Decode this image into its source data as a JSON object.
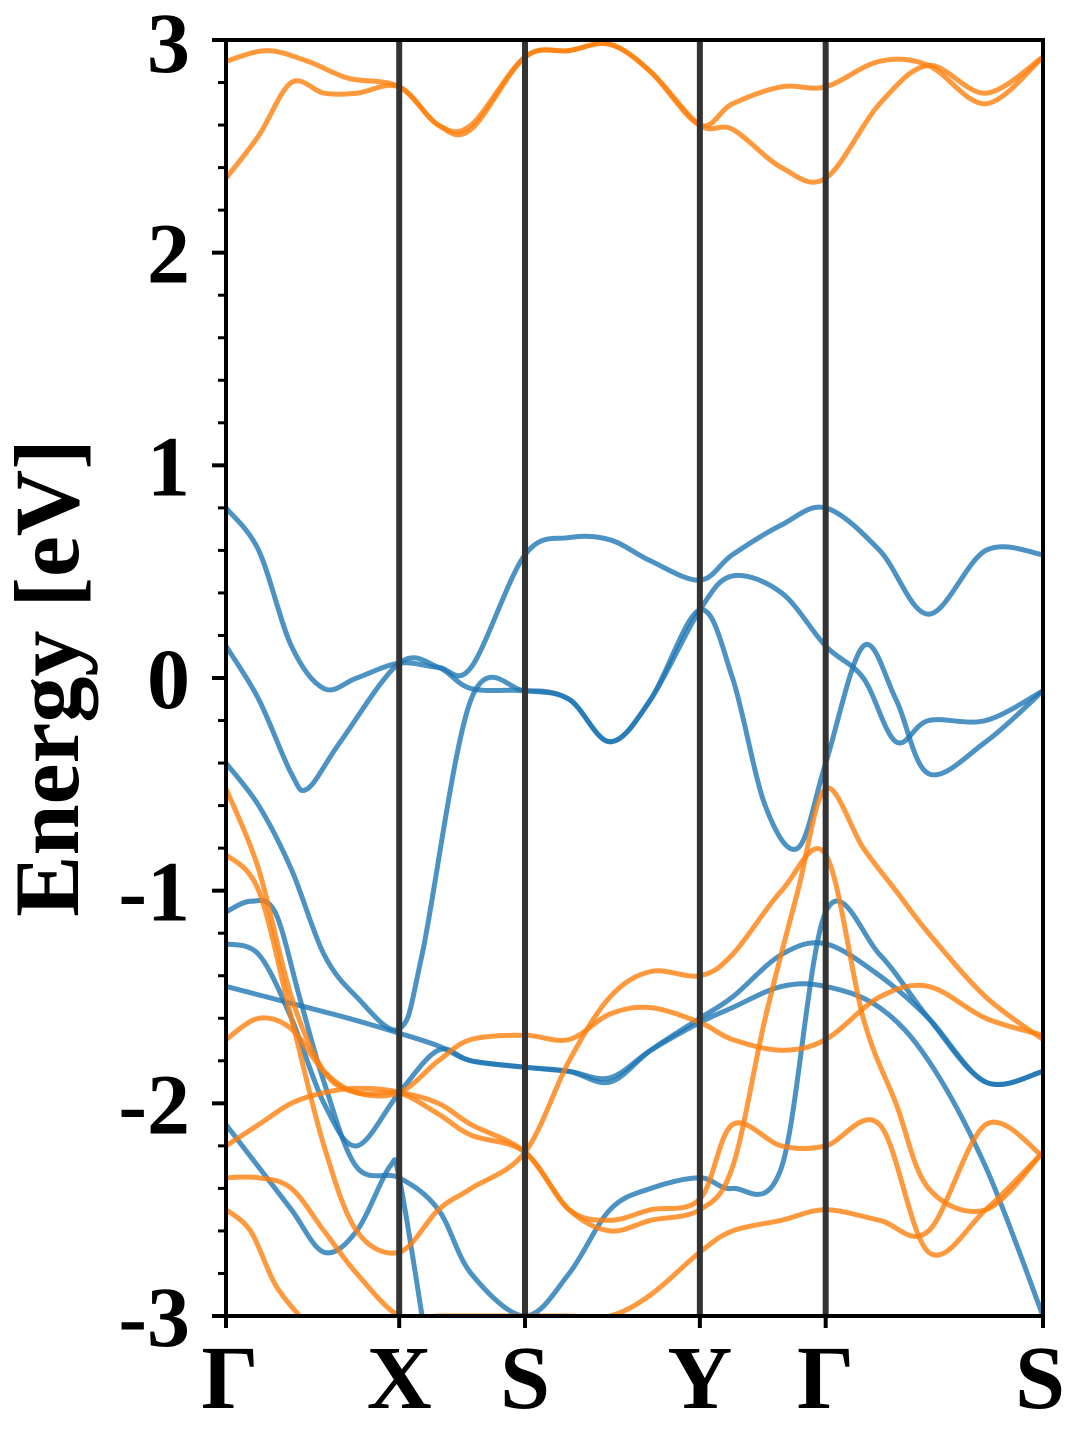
{
  "chart_data": {
    "type": "line",
    "title": "",
    "xlabel": "",
    "ylabel": "Energy [eV]",
    "ylim": [
      -3,
      3
    ],
    "yticks": [
      "3",
      "2",
      "1",
      "0",
      "-1",
      "-2",
      "-3"
    ],
    "ytick_values": [
      3,
      2,
      1,
      0,
      -1,
      -2,
      -3
    ],
    "kpoints": [
      {
        "label": "Γ",
        "x": 0.0
      },
      {
        "label": "X",
        "x": 0.212
      },
      {
        "label": "S",
        "x": 0.366
      },
      {
        "label": "Y",
        "x": 0.58
      },
      {
        "label": "Γ",
        "x": 0.734
      },
      {
        "label": "S",
        "x": 1.0
      }
    ],
    "legend": "none",
    "grid": false,
    "colors": {
      "blue": "#1f77b4",
      "orange": "#ff7f0e",
      "kline": "#333333"
    },
    "series": [
      {
        "color": "blue",
        "x": [
          0,
          0.04,
          0.08,
          0.12,
          0.16,
          0.212,
          0.26,
          0.3,
          0.366,
          0.42,
          0.47,
          0.52,
          0.58,
          0.62,
          0.68,
          0.734,
          0.8,
          0.86,
          0.93,
          1.0
        ],
        "y": [
          0.8,
          0.6,
          0.15,
          -0.05,
          0.0,
          0.07,
          0.05,
          0.05,
          0.58,
          0.66,
          0.65,
          0.55,
          0.46,
          0.58,
          0.72,
          0.8,
          0.6,
          0.3,
          0.6,
          0.58
        ]
      },
      {
        "color": "blue",
        "x": [
          0,
          0.04,
          0.08,
          0.1,
          0.14,
          0.212,
          0.26,
          0.3,
          0.366,
          0.42,
          0.47,
          0.52,
          0.58,
          0.62,
          0.66,
          0.7,
          0.734,
          0.78,
          0.82,
          0.86,
          0.93,
          1.0
        ],
        "y": [
          0.15,
          -0.1,
          -0.45,
          -0.52,
          -0.3,
          0.07,
          0.05,
          -0.05,
          -0.06,
          -0.1,
          -0.3,
          -0.1,
          0.32,
          0.0,
          -0.6,
          -0.8,
          -0.4,
          0.15,
          -0.1,
          -0.45,
          -0.3,
          -0.06
        ]
      },
      {
        "color": "blue",
        "x": [
          0,
          0.04,
          0.08,
          0.12,
          0.16,
          0.212,
          0.24,
          0.3,
          0.366,
          0.42,
          0.47,
          0.52,
          0.58,
          0.62,
          0.68,
          0.734,
          0.78,
          0.82,
          0.86,
          0.93,
          1.0
        ],
        "y": [
          -0.4,
          -0.6,
          -0.9,
          -1.3,
          -1.5,
          -1.65,
          -1.3,
          -0.1,
          -0.06,
          -0.1,
          -0.3,
          -0.1,
          0.32,
          0.48,
          0.4,
          0.15,
          0.0,
          -0.3,
          -0.2,
          -0.2,
          -0.06
        ]
      },
      {
        "color": "blue",
        "x": [
          0,
          0.03,
          0.06,
          0.09,
          0.12,
          0.16,
          0.212,
          0.26,
          0.3,
          0.366,
          0.42,
          0.47,
          0.52,
          0.58,
          0.62,
          0.68,
          0.734,
          0.8,
          0.86,
          0.93,
          1.0
        ],
        "y": [
          -1.1,
          -1.05,
          -1.1,
          -1.5,
          -1.9,
          -2.3,
          -2.35,
          -2.5,
          -2.8,
          -3.0,
          -2.8,
          -2.5,
          -2.4,
          -2.35,
          -2.4,
          -2.3,
          -1.1,
          -1.3,
          -1.6,
          -1.9,
          -1.85
        ]
      },
      {
        "color": "blue",
        "x": [
          0,
          0.04,
          0.08,
          0.12,
          0.16,
          0.212,
          0.26,
          0.3,
          0.366,
          0.42,
          0.47,
          0.52,
          0.58,
          0.62,
          0.68,
          0.734,
          0.8,
          0.86,
          0.93,
          1.0
        ],
        "y": [
          -1.25,
          -1.3,
          -1.6,
          -2.0,
          -2.2,
          -1.95,
          -1.75,
          -1.8,
          -1.83,
          -1.85,
          -1.9,
          -1.75,
          -1.6,
          -1.5,
          -1.3,
          -1.25,
          -1.4,
          -1.6,
          -1.9,
          -1.85
        ]
      },
      {
        "color": "blue",
        "x": [
          0,
          0.05,
          0.1,
          0.15,
          0.212,
          0.26,
          0.3,
          0.366,
          0.42,
          0.47,
          0.52,
          0.58,
          0.62,
          0.68,
          0.734,
          0.8,
          0.86,
          0.93,
          1.0
        ],
        "y": [
          -1.45,
          -1.5,
          -1.55,
          -1.6,
          -1.67,
          -1.73,
          -1.8,
          -1.83,
          -1.85,
          -1.88,
          -1.75,
          -1.62,
          -1.55,
          -1.45,
          -1.45,
          -1.55,
          -1.8,
          -2.3,
          -3.0
        ]
      },
      {
        "color": "blue",
        "x": [
          0,
          0.04,
          0.08,
          0.12,
          0.16,
          0.2,
          0.212,
          0.24
        ],
        "y": [
          -2.1,
          -2.3,
          -2.5,
          -2.7,
          -2.6,
          -2.3,
          -2.35,
          -3.0
        ]
      },
      {
        "color": "orange",
        "x": [
          0,
          0.04,
          0.08,
          0.12,
          0.16,
          0.212,
          0.26,
          0.3,
          0.366,
          0.42,
          0.47,
          0.52,
          0.58,
          0.62,
          0.68,
          0.734,
          0.8,
          0.86,
          0.93,
          1.0
        ],
        "y": [
          2.35,
          2.55,
          2.8,
          2.75,
          2.75,
          2.78,
          2.6,
          2.6,
          2.92,
          2.95,
          2.98,
          2.85,
          2.6,
          2.58,
          2.4,
          2.35,
          2.7,
          2.88,
          2.75,
          2.92
        ]
      },
      {
        "color": "orange",
        "x": [
          0,
          0.05,
          0.1,
          0.15,
          0.212,
          0.26,
          0.3,
          0.366,
          0.42,
          0.47,
          0.52,
          0.58,
          0.62,
          0.68,
          0.734,
          0.8,
          0.86,
          0.93,
          1.0
        ],
        "y": [
          2.9,
          2.95,
          2.9,
          2.82,
          2.78,
          2.6,
          2.58,
          2.92,
          2.95,
          2.98,
          2.85,
          2.6,
          2.7,
          2.78,
          2.78,
          2.9,
          2.88,
          2.7,
          2.92
        ]
      },
      {
        "color": "orange",
        "x": [
          0,
          0.04,
          0.08,
          0.12,
          0.16,
          0.212,
          0.26,
          0.3,
          0.366,
          0.42,
          0.47,
          0.52,
          0.58,
          0.62,
          0.66,
          0.7,
          0.734,
          0.78,
          0.82,
          0.86,
          0.93,
          1.0
        ],
        "y": [
          -0.52,
          -0.9,
          -1.5,
          -1.85,
          -1.95,
          -1.95,
          -2.0,
          -2.1,
          -2.23,
          -2.5,
          -2.6,
          -2.55,
          -2.5,
          -2.3,
          -1.6,
          -1.0,
          -0.52,
          -0.8,
          -1.0,
          -1.2,
          -1.5,
          -1.7
        ]
      },
      {
        "color": "orange",
        "x": [
          0,
          0.04,
          0.08,
          0.12,
          0.16,
          0.212,
          0.26,
          0.3,
          0.366,
          0.42,
          0.47,
          0.52,
          0.58,
          0.62,
          0.68,
          0.734,
          0.78,
          0.82,
          0.86,
          0.93,
          1.0
        ],
        "y": [
          -0.83,
          -1.0,
          -1.6,
          -2.2,
          -2.6,
          -2.7,
          -2.5,
          -2.4,
          -2.23,
          -1.8,
          -1.5,
          -1.38,
          -1.4,
          -1.3,
          -1.0,
          -0.83,
          -1.6,
          -2.0,
          -2.4,
          -2.5,
          -2.23
        ]
      },
      {
        "color": "orange",
        "x": [
          0,
          0.04,
          0.08,
          0.12,
          0.16,
          0.212,
          0.26,
          0.3,
          0.366,
          0.42,
          0.47,
          0.52,
          0.58,
          0.62,
          0.68,
          0.734,
          0.8,
          0.86,
          0.93,
          1.0
        ],
        "y": [
          -1.7,
          -1.6,
          -1.65,
          -1.85,
          -1.95,
          -1.95,
          -1.8,
          -1.7,
          -1.68,
          -1.7,
          -1.58,
          -1.55,
          -1.62,
          -1.7,
          -1.75,
          -1.7,
          -1.5,
          -1.45,
          -1.6,
          -1.68
        ]
      },
      {
        "color": "orange",
        "x": [
          0,
          0.04,
          0.08,
          0.12,
          0.16,
          0.212,
          0.26,
          0.3,
          0.366,
          0.42,
          0.47,
          0.52,
          0.58,
          0.62,
          0.68,
          0.734,
          0.8,
          0.86,
          0.93,
          1.0
        ],
        "y": [
          -2.2,
          -2.1,
          -2.0,
          -1.95,
          -1.93,
          -1.95,
          -2.05,
          -2.15,
          -2.23,
          -2.5,
          -2.55,
          -2.5,
          -2.45,
          -2.1,
          -2.2,
          -2.2,
          -2.1,
          -2.7,
          -2.5,
          -2.23
        ]
      },
      {
        "color": "orange",
        "x": [
          0,
          0.04,
          0.08,
          0.12,
          0.16,
          0.212,
          0.26,
          0.3,
          0.366,
          0.42,
          0.47,
          0.52,
          0.58,
          0.62,
          0.68,
          0.734,
          0.8,
          0.86,
          0.93,
          1.0
        ],
        "y": [
          -2.35,
          -2.35,
          -2.4,
          -2.6,
          -2.8,
          -3.0,
          -3.0,
          -3.0,
          -3.0,
          -3.0,
          -3.0,
          -2.9,
          -2.7,
          -2.6,
          -2.55,
          -2.5,
          -2.55,
          -2.6,
          -2.1,
          -2.25
        ]
      },
      {
        "color": "orange",
        "x": [
          0,
          0.03,
          0.06,
          0.09
        ],
        "y": [
          -2.5,
          -2.6,
          -2.85,
          -3.0
        ]
      }
    ]
  }
}
